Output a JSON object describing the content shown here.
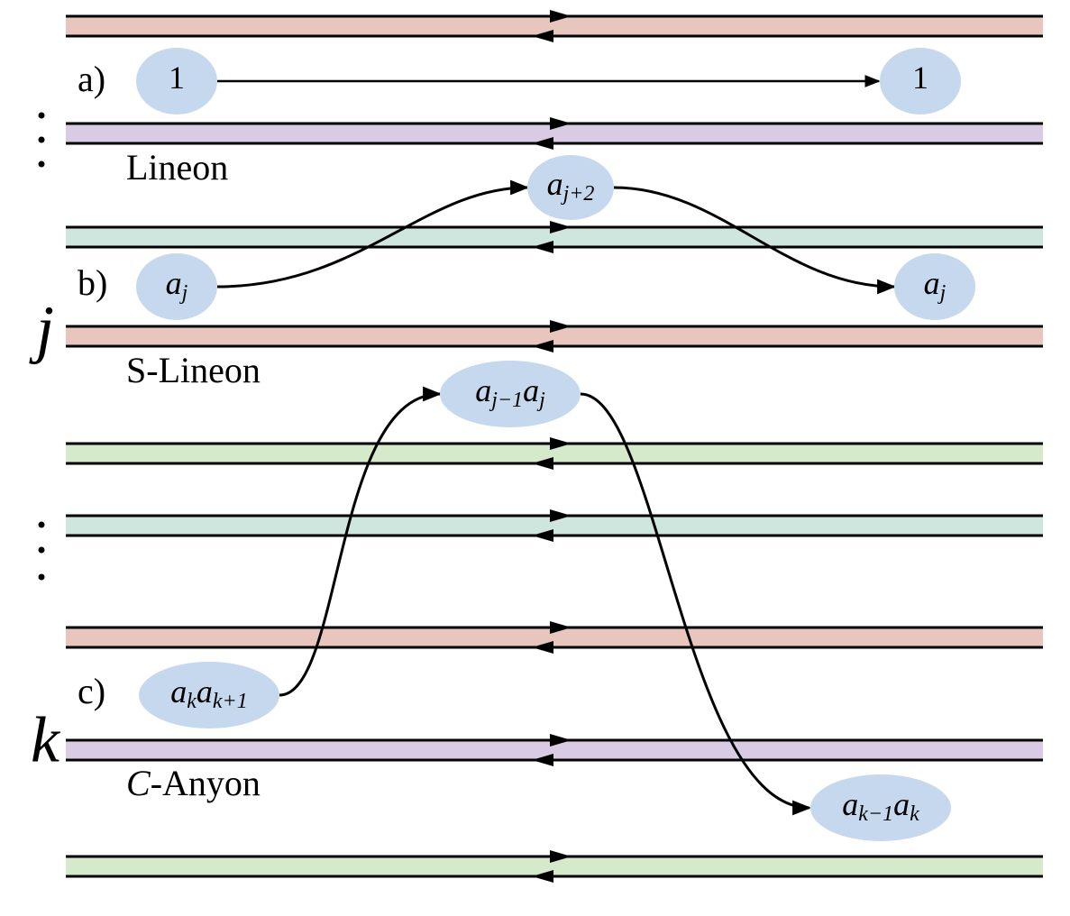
{
  "labels": {
    "a": "a)",
    "b": "b)",
    "c": "c)"
  },
  "names": {
    "lineon": "Lineon",
    "s_lineon": "S-Lineon",
    "c_anyon": {
      "italic": "C",
      "rest": "-Anyon"
    }
  },
  "indices": {
    "j": "j",
    "k": "k"
  },
  "nodes": [
    {
      "parts": [
        {
          "base": "1"
        }
      ]
    },
    {
      "parts": [
        {
          "base": "1"
        }
      ]
    },
    {
      "parts": [
        {
          "base": "a",
          "sub": "j"
        }
      ]
    },
    {
      "parts": [
        {
          "base": "a",
          "sub": "j+2"
        }
      ]
    },
    {
      "parts": [
        {
          "base": "a",
          "sub": "j"
        }
      ]
    },
    {
      "parts": [
        {
          "base": "a",
          "sub": "k"
        },
        {
          "base": "a",
          "sub": "k+1"
        }
      ]
    },
    {
      "parts": [
        {
          "base": "a",
          "sub": "j−1"
        },
        {
          "base": "a",
          "sub": "j"
        }
      ]
    },
    {
      "parts": [
        {
          "base": "a",
          "sub": "k−1"
        },
        {
          "base": "a",
          "sub": "k"
        }
      ]
    }
  ]
}
